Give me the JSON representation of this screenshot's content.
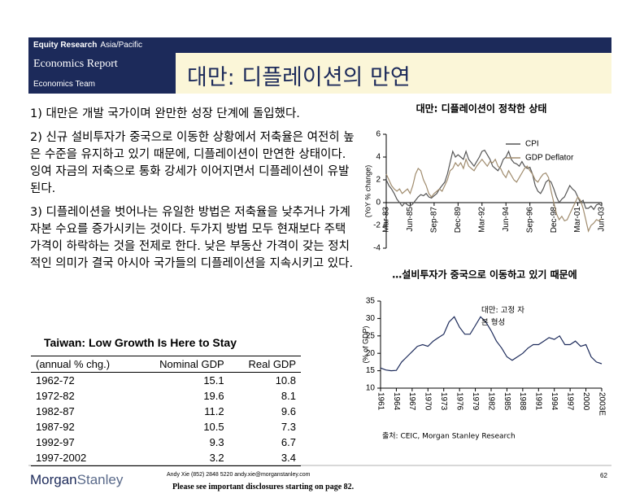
{
  "header": {
    "division": "Equity Research",
    "region": "Asia/Pacific",
    "report": "Economics Report",
    "team": "Economics Team",
    "title": "대만: 디플레이션의 만연"
  },
  "bullets": [
    "1) 대만은 개발 국가이며 완만한 성장 단계에 돌입했다.",
    "2) 신규 설비투자가 중국으로 이동한 상황에서 저축율은 여전히 높은 수준을 유지하고 있기 때문에, 디플레이션이 만연한 상태이다. 잉여 자금의 저축으로 통화 강세가 이어지면서 디플레이션이 유발된다.",
    "3) 디플레이션을 벗어나는 유일한 방법은 저축율을 낮추거나 가계 자본 수요를 증가시키는 것이다. 두가지 방법 모두 현재보다 주택 가격이 하락하는 것을 전제로 한다. 낮은 부동산 가격이 갖는 정치적인 의미가 결국 아시아 국가들의 디플레이션을 지속시키고 있다."
  ],
  "chart_data": [
    {
      "type": "line",
      "title": "대만: 디플레이션이 정착한 상태",
      "y_label": "(YoY % change)",
      "categories": [
        "Mar-83",
        null,
        null,
        null,
        null,
        null,
        null,
        null,
        null,
        "Jun-85",
        null,
        null,
        null,
        null,
        null,
        null,
        null,
        null,
        "Sep-87",
        null,
        null,
        null,
        null,
        null,
        null,
        null,
        null,
        "Dec-89",
        null,
        null,
        null,
        null,
        null,
        null,
        null,
        null,
        "Mar-92",
        null,
        null,
        null,
        null,
        null,
        null,
        null,
        null,
        "Jun-94",
        null,
        null,
        null,
        null,
        null,
        null,
        null,
        null,
        "Sep-96",
        null,
        null,
        null,
        null,
        null,
        null,
        null,
        null,
        "Dec-98",
        null,
        null,
        null,
        null,
        null,
        null,
        null,
        null,
        "Mar-01",
        null,
        null,
        null,
        null,
        null,
        null,
        null,
        null,
        "Jun-03"
      ],
      "series": [
        {
          "name": "CPI",
          "color": "#555555",
          "values": [
            2.0,
            1.5,
            1.2,
            0.8,
            0.3,
            0.0,
            -0.3,
            0.0,
            -0.2,
            -0.3,
            -0.1,
            0.2,
            0.5,
            0.7,
            0.6,
            0.8,
            0.5,
            0.4,
            0.6,
            0.8,
            1.2,
            1.5,
            1.8,
            2.5,
            3.5,
            4.5,
            4.0,
            4.2,
            4.0,
            3.8,
            4.5,
            3.8,
            3.5,
            3.2,
            3.6,
            4.0,
            4.5,
            4.6,
            4.2,
            3.8,
            3.2,
            3.0,
            2.8,
            3.2,
            3.8,
            4.0,
            4.5,
            3.8,
            3.5,
            3.4,
            3.2,
            3.6,
            3.2,
            3.0,
            3.1,
            2.5,
            1.5,
            1.0,
            0.8,
            1.2,
            1.8,
            2.0,
            1.8,
            1.2,
            0.5,
            0.0,
            0.3,
            0.5,
            1.0,
            1.5,
            1.2,
            1.0,
            0.5,
            0.0,
            0.2,
            -0.5,
            -0.5,
            -0.3,
            -0.6,
            -0.2,
            -0.1,
            -0.3
          ]
        },
        {
          "name": "GDP Deflator",
          "color": "#a08c6e",
          "values": [
            2.5,
            2.0,
            1.5,
            1.2,
            1.0,
            1.2,
            0.8,
            1.0,
            1.2,
            0.8,
            1.5,
            2.5,
            3.0,
            2.8,
            2.0,
            1.5,
            0.8,
            0.5,
            0.8,
            1.0,
            1.2,
            1.0,
            1.5,
            2.0,
            2.8,
            3.0,
            3.5,
            3.2,
            3.5,
            3.0,
            3.8,
            3.2,
            3.0,
            2.8,
            3.2,
            3.5,
            3.8,
            3.5,
            3.2,
            3.6,
            3.5,
            3.8,
            3.2,
            3.0,
            2.5,
            2.2,
            2.8,
            2.4,
            2.0,
            1.8,
            2.2,
            2.6,
            3.0,
            3.2,
            2.8,
            2.5,
            2.0,
            1.8,
            2.2,
            2.5,
            2.6,
            2.2,
            1.0,
            0.0,
            -1.0,
            -1.5,
            -1.2,
            -1.6,
            -1.5,
            -1.0,
            -0.5,
            0.0,
            0.5,
            0.2,
            -0.5,
            -1.5,
            -2.5,
            -2.0,
            -1.8,
            -1.5,
            -1.6,
            -1.4
          ]
        }
      ],
      "ylim": [
        -4,
        6
      ],
      "yticks": [
        -4,
        -2,
        0,
        2,
        4,
        6
      ],
      "legend": "top-right"
    },
    {
      "type": "line",
      "title": "…설비투자가 중국으로 이동하고 있기 때문에",
      "y_label": "(% of GDP)",
      "annotation": "대만: 고정 자본 형성",
      "categories": [
        "1961",
        null,
        null,
        "1964",
        null,
        null,
        "1967",
        null,
        null,
        "1970",
        null,
        null,
        "1973",
        null,
        null,
        "1976",
        null,
        null,
        "1979",
        null,
        null,
        "1982",
        null,
        null,
        "1985",
        null,
        null,
        "1988",
        null,
        null,
        "1991",
        null,
        null,
        "1994",
        null,
        null,
        "1997",
        null,
        null,
        "2000",
        null,
        null,
        "2003E"
      ],
      "color": "#1c2a5a",
      "values": [
        15.8,
        15.2,
        15.0,
        15.1,
        17.5,
        19.0,
        20.5,
        22.0,
        22.5,
        22.0,
        23.5,
        24.5,
        25.5,
        29.0,
        30.5,
        27.5,
        25.5,
        25.5,
        28.0,
        30.5,
        29.0,
        26.5,
        23.5,
        21.5,
        19.0,
        18.0,
        19.0,
        20.0,
        21.5,
        22.5,
        22.5,
        23.5,
        24.5,
        24.0,
        25.0,
        22.5,
        22.5,
        23.5,
        22.0,
        22.5,
        19.0,
        17.5,
        17.0
      ],
      "ylim": [
        10,
        35
      ],
      "yticks": [
        10,
        15,
        20,
        25,
        30,
        35
      ]
    }
  ],
  "source": "출처: CEIC, Morgan Stanley Research",
  "table": {
    "title": "Taiwan: Low Growth Is Here to Stay",
    "columns": [
      "(annual % chg.)",
      "Nominal GDP",
      "Real GDP"
    ],
    "rows": [
      [
        "1962-72",
        "15.1",
        "10.8"
      ],
      [
        "1972-82",
        "19.6",
        "8.1"
      ],
      [
        "1982-87",
        "11.2",
        "9.6"
      ],
      [
        "1987-92",
        "10.5",
        "7.3"
      ],
      [
        "1992-97",
        "9.3",
        "6.7"
      ],
      [
        "1997-2002",
        "3.2",
        "3.4"
      ]
    ]
  },
  "footer": {
    "author": "Andy Xie (852) 2848 5220 andy.xie@morganstanley.com",
    "disclosure": "Please see important disclosures starting on page 82.",
    "page": "62",
    "logo_1": "Morgan",
    "logo_2": "Stanley"
  }
}
